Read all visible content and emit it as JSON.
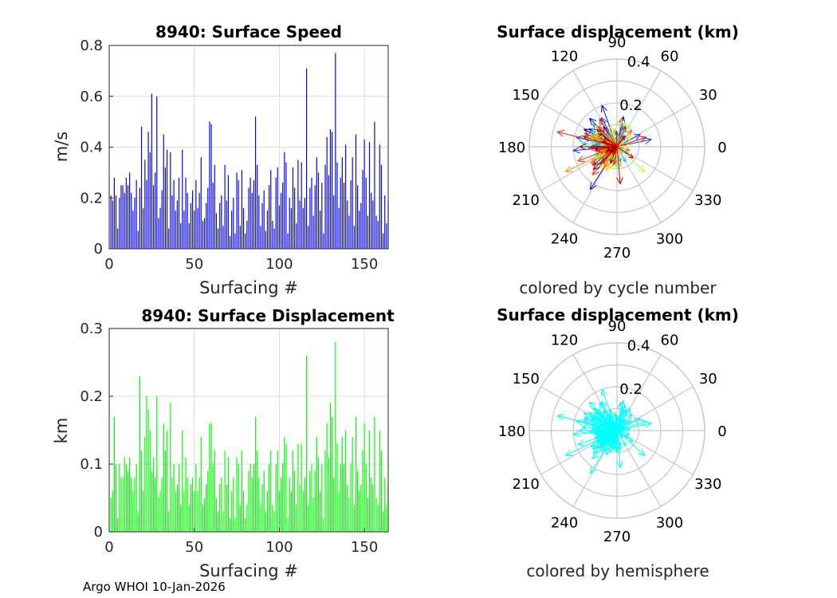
{
  "footer": "Argo WHOI 10-Jan-2026",
  "chart_data": [
    {
      "type": "bar",
      "title": "8940: Surface Speed",
      "xlabel": "Surfacing #",
      "ylabel": "m/s",
      "xlim": [
        0,
        164
      ],
      "ylim": [
        0,
        0.8
      ],
      "xticks": [
        "0",
        "50",
        "100",
        "150"
      ],
      "yticks": [
        "0",
        "0.2",
        "0.4",
        "0.6",
        "0.8"
      ],
      "grid": true,
      "color": "#0000ff",
      "values": [
        0.21,
        0.19,
        0.28,
        0.21,
        0.08,
        0.2,
        0.25,
        0.25,
        0.22,
        0.28,
        0.25,
        0.3,
        0.22,
        0.15,
        0.2,
        0.27,
        0.07,
        0.24,
        0.48,
        0.16,
        0.35,
        0.27,
        0.46,
        0.38,
        0.61,
        0.25,
        0.3,
        0.6,
        0.12,
        0.16,
        0.23,
        0.45,
        0.32,
        0.39,
        0.08,
        0.38,
        0.21,
        0.27,
        0.15,
        0.19,
        0.28,
        0.1,
        0.39,
        0.15,
        0.28,
        0.22,
        0.1,
        0.18,
        0.23,
        0.15,
        0.27,
        0.16,
        0.22,
        0.36,
        0.11,
        0.12,
        0.18,
        0.24,
        0.5,
        0.49,
        0.26,
        0.33,
        0.14,
        0.08,
        0.18,
        0.21,
        0.09,
        0.33,
        0.19,
        0.29,
        0.05,
        0.15,
        0.2,
        0.06,
        0.3,
        0.27,
        0.09,
        0.31,
        0.16,
        0.06,
        0.11,
        0.24,
        0.28,
        0.22,
        0.27,
        0.52,
        0.33,
        0.21,
        0.09,
        0.18,
        0.23,
        0.07,
        0.15,
        0.25,
        0.31,
        0.11,
        0.08,
        0.28,
        0.32,
        0.17,
        0.22,
        0.26,
        0.38,
        0.34,
        0.06,
        0.2,
        0.16,
        0.32,
        0.24,
        0.1,
        0.35,
        0.19,
        0.34,
        0.16,
        0.2,
        0.71,
        0.09,
        0.24,
        0.28,
        0.13,
        0.25,
        0.36,
        0.3,
        0.15,
        0.26,
        0.06,
        0.33,
        0.44,
        0.29,
        0.47,
        0.46,
        0.21,
        0.77,
        0.34,
        0.16,
        0.28,
        0.36,
        0.26,
        0.41,
        0.19,
        0.13,
        0.27,
        0.36,
        0.09,
        0.45,
        0.25,
        0.15,
        0.18,
        0.31,
        0.43,
        0.28,
        0.13,
        0.42,
        0.22,
        0.19,
        0.5,
        0.13,
        0.11,
        0.41,
        0.33,
        0.06,
        0.21,
        0.1,
        0.19
      ]
    },
    {
      "type": "bar",
      "title": "8940: Surface Displacement",
      "xlabel": "Surfacing #",
      "ylabel": "km",
      "xlim": [
        0,
        164
      ],
      "ylim": [
        0,
        0.3
      ],
      "xticks": [
        "0",
        "50",
        "100",
        "150"
      ],
      "yticks": [
        "0",
        "0.1",
        "0.2",
        "0.3"
      ],
      "grid": true,
      "color": "#00ff00",
      "values": [
        0.05,
        0.06,
        0.17,
        0.1,
        0.02,
        0.1,
        0.08,
        0.08,
        0.11,
        0.1,
        0.09,
        0.11,
        0.08,
        0.06,
        0.08,
        0.1,
        0.03,
        0.23,
        0.12,
        0.06,
        0.14,
        0.2,
        0.18,
        0.15,
        0.09,
        0.11,
        0.08,
        0.2,
        0.05,
        0.06,
        0.08,
        0.16,
        0.12,
        0.15,
        0.03,
        0.19,
        0.08,
        0.1,
        0.06,
        0.07,
        0.1,
        0.04,
        0.15,
        0.06,
        0.11,
        0.08,
        0.04,
        0.07,
        0.08,
        0.06,
        0.1,
        0.06,
        0.08,
        0.14,
        0.04,
        0.05,
        0.07,
        0.09,
        0.16,
        0.16,
        0.1,
        0.12,
        0.05,
        0.03,
        0.07,
        0.08,
        0.03,
        0.12,
        0.07,
        0.11,
        0.02,
        0.06,
        0.08,
        0.02,
        0.11,
        0.1,
        0.04,
        0.12,
        0.06,
        0.02,
        0.04,
        0.09,
        0.1,
        0.08,
        0.1,
        0.17,
        0.12,
        0.08,
        0.04,
        0.07,
        0.09,
        0.03,
        0.06,
        0.1,
        0.12,
        0.04,
        0.03,
        0.1,
        0.12,
        0.06,
        0.08,
        0.1,
        0.14,
        0.13,
        0.02,
        0.08,
        0.06,
        0.12,
        0.09,
        0.04,
        0.13,
        0.07,
        0.13,
        0.06,
        0.08,
        0.26,
        0.04,
        0.09,
        0.1,
        0.05,
        0.09,
        0.14,
        0.11,
        0.06,
        0.1,
        0.02,
        0.12,
        0.16,
        0.11,
        0.19,
        0.17,
        0.08,
        0.28,
        0.13,
        0.06,
        0.1,
        0.14,
        0.1,
        0.15,
        0.07,
        0.05,
        0.1,
        0.14,
        0.04,
        0.17,
        0.09,
        0.06,
        0.07,
        0.12,
        0.16,
        0.1,
        0.05,
        0.15,
        0.08,
        0.07,
        0.17,
        0.05,
        0.04,
        0.15,
        0.12,
        0.03,
        0.08,
        0.04,
        0.07
      ]
    },
    {
      "type": "polar",
      "title": "Surface displacement (km)",
      "caption": "colored by cycle number",
      "rlim": [
        0,
        0.4
      ],
      "rticks": [
        "0.2",
        "0.4"
      ],
      "thetaticks": [
        "0",
        "30",
        "60",
        "90",
        "120",
        "150",
        "180",
        "210",
        "240",
        "270",
        "300",
        "330"
      ],
      "coloring": "cycle",
      "angles_deg": [
        163,
        178,
        152,
        190,
        201,
        211,
        232,
        247,
        124,
        142,
        168,
        183,
        205,
        259,
        97,
        175,
        221,
        238,
        180,
        52,
        78,
        110,
        134,
        147,
        198,
        226,
        262,
        185,
        156,
        171,
        195,
        12,
        28,
        118,
        140,
        167,
        188,
        204,
        244,
        282,
        75,
        102,
        137,
        160,
        176,
        193,
        215,
        250,
        300,
        330,
        64,
        89,
        128,
        150,
        181,
        207,
        236,
        268,
        158,
        174,
        196,
        220,
        245,
        352,
        40,
        115,
        145,
        169,
        186,
        210,
        231,
        255,
        162,
        178,
        199,
        222,
        24,
        72,
        126,
        153,
        172,
        189,
        214,
        240,
        270,
        318,
        60,
        96,
        142,
        165,
        184,
        202,
        228,
        252,
        148,
        176,
        192,
        208,
        233,
        6,
        35,
        108,
        136,
        159,
        177,
        195,
        218,
        246,
        280,
        310,
        82,
        120,
        155,
        170,
        187,
        206,
        225,
        258,
        150,
        173,
        197,
        212,
        238,
        344,
        48,
        105,
        132,
        158,
        179,
        200,
        229,
        262,
        166,
        183,
        209,
        226,
        18,
        68,
        122,
        146,
        168,
        190,
        217,
        242,
        275,
        325,
        56,
        92,
        139,
        163,
        185,
        203,
        224,
        249,
        160,
        180,
        201,
        219
      ],
      "magnitudes_km": [
        0.05,
        0.06,
        0.17,
        0.1,
        0.02,
        0.1,
        0.08,
        0.08,
        0.11,
        0.1,
        0.09,
        0.11,
        0.08,
        0.06,
        0.08,
        0.1,
        0.03,
        0.23,
        0.12,
        0.06,
        0.14,
        0.2,
        0.18,
        0.15,
        0.09,
        0.11,
        0.08,
        0.2,
        0.05,
        0.06,
        0.08,
        0.16,
        0.12,
        0.15,
        0.03,
        0.19,
        0.08,
        0.1,
        0.06,
        0.07,
        0.1,
        0.04,
        0.15,
        0.06,
        0.11,
        0.08,
        0.04,
        0.07,
        0.08,
        0.06,
        0.1,
        0.06,
        0.08,
        0.14,
        0.04,
        0.05,
        0.07,
        0.09,
        0.16,
        0.16,
        0.1,
        0.12,
        0.05,
        0.03,
        0.07,
        0.08,
        0.03,
        0.12,
        0.07,
        0.11,
        0.02,
        0.06,
        0.08,
        0.02,
        0.11,
        0.1,
        0.04,
        0.12,
        0.06,
        0.02,
        0.04,
        0.09,
        0.1,
        0.08,
        0.1,
        0.17,
        0.12,
        0.08,
        0.04,
        0.07,
        0.09,
        0.03,
        0.06,
        0.1,
        0.12,
        0.04,
        0.03,
        0.1,
        0.12,
        0.06,
        0.08,
        0.1,
        0.14,
        0.13,
        0.02,
        0.08,
        0.06,
        0.12,
        0.09,
        0.04,
        0.13,
        0.07,
        0.13,
        0.06,
        0.08,
        0.26,
        0.04,
        0.09,
        0.1,
        0.05,
        0.09,
        0.14,
        0.11,
        0.06,
        0.1,
        0.02,
        0.12,
        0.16,
        0.11,
        0.19,
        0.17,
        0.08,
        0.28,
        0.13,
        0.06,
        0.1,
        0.14,
        0.1,
        0.15,
        0.07,
        0.05,
        0.1,
        0.14,
        0.04,
        0.17,
        0.09,
        0.06,
        0.07,
        0.12,
        0.16,
        0.1,
        0.05,
        0.15,
        0.08,
        0.07,
        0.17,
        0.05,
        0.04,
        0.15,
        0.12,
        0.03,
        0.08,
        0.04,
        0.07
      ]
    },
    {
      "type": "polar",
      "title": "Surface displacement (km)",
      "caption": "colored by hemisphere",
      "rlim": [
        0,
        0.4
      ],
      "rticks": [
        "0.2",
        "0.4"
      ],
      "thetaticks": [
        "0",
        "30",
        "60",
        "90",
        "120",
        "150",
        "180",
        "210",
        "240",
        "270",
        "300",
        "330"
      ],
      "coloring": "hemisphere",
      "color": "#00ffff",
      "angles_deg": [
        163,
        178,
        152,
        190,
        201,
        211,
        232,
        247,
        124,
        142,
        168,
        183,
        205,
        259,
        97,
        175,
        221,
        238,
        180,
        52,
        78,
        110,
        134,
        147,
        198,
        226,
        262,
        185,
        156,
        171,
        195,
        12,
        28,
        118,
        140,
        167,
        188,
        204,
        244,
        282,
        75,
        102,
        137,
        160,
        176,
        193,
        215,
        250,
        300,
        330,
        64,
        89,
        128,
        150,
        181,
        207,
        236,
        268,
        158,
        174,
        196,
        220,
        245,
        352,
        40,
        115,
        145,
        169,
        186,
        210,
        231,
        255,
        162,
        178,
        199,
        222,
        24,
        72,
        126,
        153,
        172,
        189,
        214,
        240,
        270,
        318,
        60,
        96,
        142,
        165,
        184,
        202,
        228,
        252,
        148,
        176,
        192,
        208,
        233,
        6,
        35,
        108,
        136,
        159,
        177,
        195,
        218,
        246,
        280,
        310,
        82,
        120,
        155,
        170,
        187,
        206,
        225,
        258,
        150,
        173,
        197,
        212,
        238,
        344,
        48,
        105,
        132,
        158,
        179,
        200,
        229,
        262,
        166,
        183,
        209,
        226,
        18,
        68,
        122,
        146,
        168,
        190,
        217,
        242,
        275,
        325,
        56,
        92,
        139,
        163,
        185,
        203,
        224,
        249,
        160,
        180,
        201,
        219
      ],
      "magnitudes_km": [
        0.05,
        0.06,
        0.17,
        0.1,
        0.02,
        0.1,
        0.08,
        0.08,
        0.11,
        0.1,
        0.09,
        0.11,
        0.08,
        0.06,
        0.08,
        0.1,
        0.03,
        0.23,
        0.12,
        0.06,
        0.14,
        0.2,
        0.18,
        0.15,
        0.09,
        0.11,
        0.08,
        0.2,
        0.05,
        0.06,
        0.08,
        0.16,
        0.12,
        0.15,
        0.03,
        0.19,
        0.08,
        0.1,
        0.06,
        0.07,
        0.1,
        0.04,
        0.15,
        0.06,
        0.11,
        0.08,
        0.04,
        0.07,
        0.08,
        0.06,
        0.1,
        0.06,
        0.08,
        0.14,
        0.04,
        0.05,
        0.07,
        0.09,
        0.16,
        0.16,
        0.1,
        0.12,
        0.05,
        0.03,
        0.07,
        0.08,
        0.03,
        0.12,
        0.07,
        0.11,
        0.02,
        0.06,
        0.08,
        0.02,
        0.11,
        0.1,
        0.04,
        0.12,
        0.06,
        0.02,
        0.04,
        0.09,
        0.1,
        0.08,
        0.1,
        0.17,
        0.12,
        0.08,
        0.04,
        0.07,
        0.09,
        0.03,
        0.06,
        0.1,
        0.12,
        0.04,
        0.03,
        0.1,
        0.12,
        0.06,
        0.08,
        0.1,
        0.14,
        0.13,
        0.02,
        0.08,
        0.06,
        0.12,
        0.09,
        0.04,
        0.13,
        0.07,
        0.13,
        0.06,
        0.08,
        0.26,
        0.04,
        0.09,
        0.1,
        0.05,
        0.09,
        0.14,
        0.11,
        0.06,
        0.1,
        0.02,
        0.12,
        0.16,
        0.11,
        0.19,
        0.17,
        0.08,
        0.28,
        0.13,
        0.06,
        0.1,
        0.14,
        0.1,
        0.15,
        0.07,
        0.05,
        0.1,
        0.14,
        0.04,
        0.17,
        0.09,
        0.06,
        0.07,
        0.12,
        0.16,
        0.1,
        0.05,
        0.15,
        0.08,
        0.07,
        0.17,
        0.05,
        0.04,
        0.15,
        0.12,
        0.03,
        0.08,
        0.04,
        0.07
      ]
    }
  ]
}
